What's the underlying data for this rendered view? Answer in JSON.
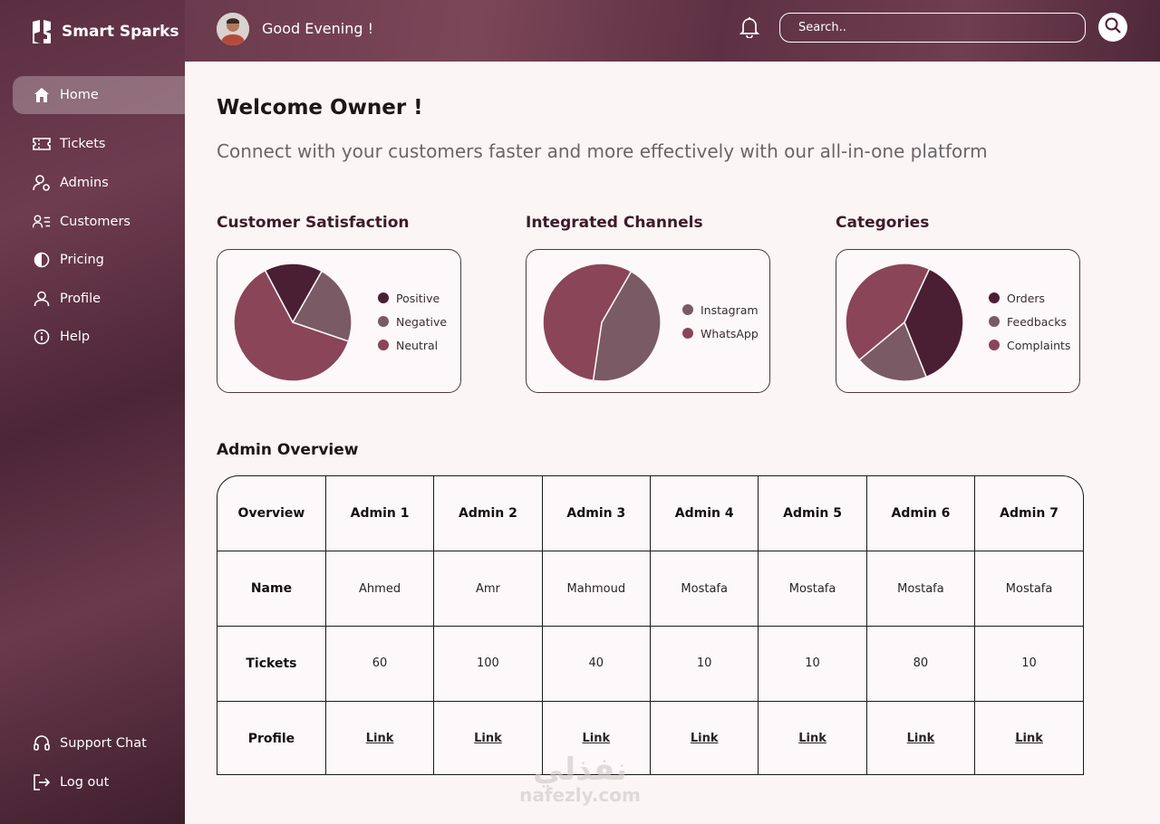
{
  "app": {
    "name": "Smart Sparks"
  },
  "header": {
    "greeting": "Good Evening  !",
    "search_placeholder": "Search.."
  },
  "sidebar": {
    "items": [
      {
        "label": "Home",
        "icon": "home-icon",
        "active": true
      },
      {
        "label": "Tickets",
        "icon": "ticket-icon"
      },
      {
        "label": "Admins",
        "icon": "admin-settings-icon"
      },
      {
        "label": "Customers",
        "icon": "customers-list-icon"
      },
      {
        "label": "Pricing",
        "icon": "pricing-icon"
      },
      {
        "label": "Profile",
        "icon": "user-icon"
      },
      {
        "label": "Help",
        "icon": "info-icon"
      }
    ],
    "bottom": [
      {
        "label": "Support Chat",
        "icon": "headset-icon"
      },
      {
        "label": "Log out",
        "icon": "logout-icon"
      }
    ]
  },
  "main": {
    "welcome": "Welcome Owner !",
    "subtitle": "Connect with your customers faster and more effectively with our all-in-one platform"
  },
  "colors": {
    "dark": "#4a1f33",
    "mid": "#7a5a65",
    "light": "#8a4558",
    "accent": "#6e3c4f"
  },
  "chart_data": [
    {
      "type": "pie",
      "title": "Customer Satisfaction",
      "labels": [
        "Positive",
        "Negative",
        "Neutral"
      ],
      "values": [
        16,
        22,
        62
      ],
      "colors": [
        "#4a1f33",
        "#7a5a65",
        "#8a4558"
      ]
    },
    {
      "type": "pie",
      "title": "Integrated Channels",
      "labels": [
        "Instagram",
        "WhatsApp"
      ],
      "values": [
        44,
        56
      ],
      "colors": [
        "#7a5a65",
        "#8a4558"
      ]
    },
    {
      "type": "pie",
      "title": "Categories",
      "labels": [
        "Orders",
        "Feedbacks",
        "Complaints"
      ],
      "values": [
        37,
        20,
        43
      ],
      "colors": [
        "#4a1f33",
        "#7a5a65",
        "#8a4558"
      ]
    }
  ],
  "admin_overview": {
    "title": "Admin Overview",
    "headers": [
      "Overview",
      "Admin 1",
      "Admin 2",
      "Admin 3",
      "Admin 4",
      "Admin 5",
      "Admin 6",
      "Admin 7"
    ],
    "rows": [
      {
        "label": "Name",
        "values": [
          "Ahmed",
          "Amr",
          "Mahmoud",
          "Mostafa",
          "Mostafa",
          "Mostafa",
          "Mostafa"
        ]
      },
      {
        "label": "Tickets",
        "values": [
          "60",
          "100",
          "40",
          "10",
          "10",
          "80",
          "10"
        ]
      },
      {
        "label": "Profile",
        "values": [
          "Link",
          "Link",
          "Link",
          "Link",
          "Link",
          "Link",
          "Link"
        ],
        "link": true
      }
    ]
  },
  "watermark": {
    "arabic": "نفذلي",
    "latin": "nafezly.com"
  }
}
